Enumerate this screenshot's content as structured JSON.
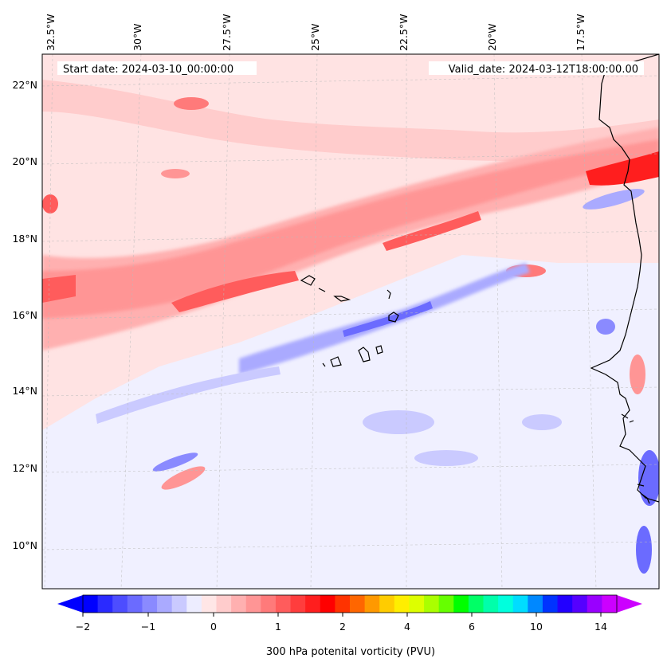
{
  "map": {
    "start_date_label": "Start date: 2024-03-10_00:00:00",
    "valid_date_label": "Valid_date: 2024-03-12T18:00:00.00",
    "lon_labels": [
      "32.5°W",
      "30°W",
      "27.5°W",
      "25°W",
      "22.5°W",
      "20°W",
      "17.5°W"
    ],
    "lat_labels": [
      "22°N",
      "20°N",
      "18°N",
      "16°N",
      "14°N",
      "12°N",
      "10°N"
    ]
  },
  "colorbar": {
    "title": "300 hPa potenital vorticity (PVU)",
    "tick_labels": [
      "−2",
      "−1",
      "0",
      "1",
      "2",
      "4",
      "6",
      "10",
      "14"
    ],
    "colors": [
      "#0000ff",
      "#2a2aff",
      "#4d4dff",
      "#6b6bff",
      "#8a8aff",
      "#aaaaff",
      "#cacaff",
      "#ededff",
      "#ffe6e6",
      "#ffcccc",
      "#ffb0b0",
      "#ff9595",
      "#ff7a7a",
      "#ff5c5c",
      "#ff3d3d",
      "#ff1e1e",
      "#ff0000",
      "#ff3300",
      "#ff6600",
      "#ff9900",
      "#ffcc00",
      "#ffee00",
      "#ddff00",
      "#aaff00",
      "#66ff00",
      "#00ff00",
      "#00ff66",
      "#00ffaa",
      "#00ffdd",
      "#00ddff",
      "#0088ff",
      "#0033ff",
      "#2200ff",
      "#5500ff",
      "#9900ff",
      "#cc00ff"
    ]
  },
  "colors": {
    "background_pv": "#ededff",
    "high_pv": "#ff3d3d",
    "low_pv": "#6b6bff",
    "coastline": "#000000"
  }
}
